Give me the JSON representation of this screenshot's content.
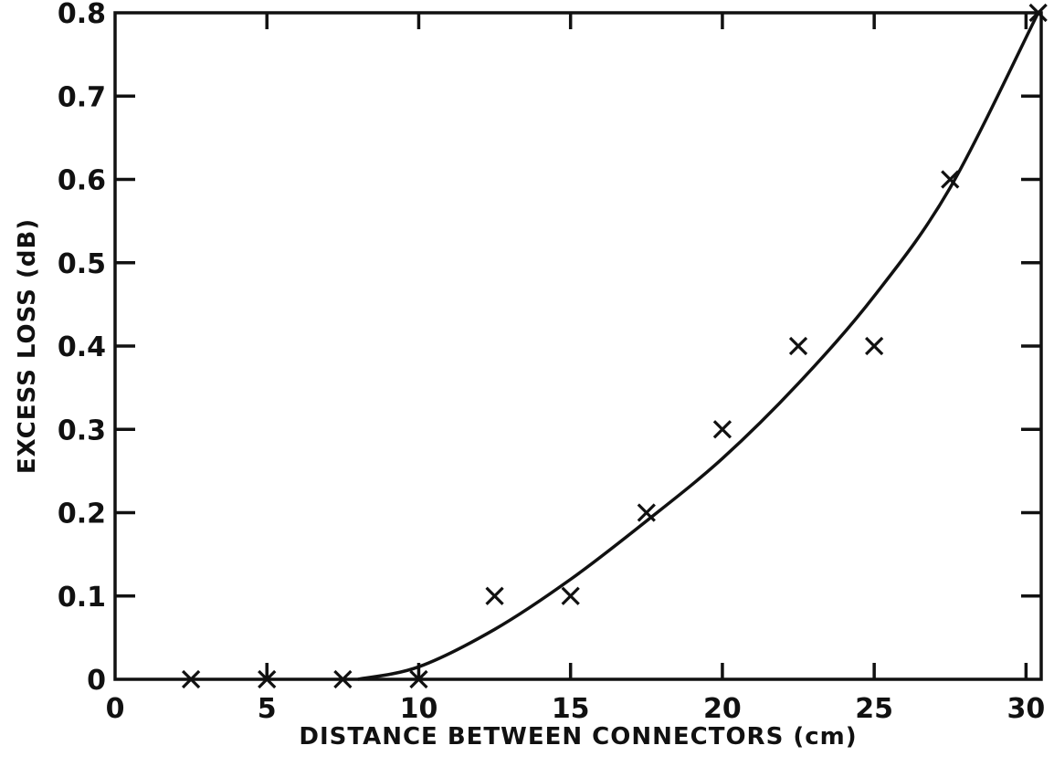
{
  "chart_data": {
    "type": "scatter",
    "title": "",
    "xlabel": "DISTANCE BETWEEN CONNECTORS (cm)",
    "ylabel": "EXCESS LOSS (dB)",
    "xlim": [
      0,
      30.5
    ],
    "ylim": [
      0,
      0.8
    ],
    "x_ticks": [
      0,
      5,
      10,
      15,
      20,
      25,
      30
    ],
    "x_tick_labels": [
      "0",
      "5",
      "10",
      "15",
      "20",
      "25",
      "30"
    ],
    "y_ticks": [
      0,
      0.1,
      0.2,
      0.3,
      0.4,
      0.5,
      0.6,
      0.7,
      0.8
    ],
    "y_tick_labels": [
      "0",
      "0.1",
      "0.2",
      "0.3",
      "0.4",
      "0.5",
      "0.6",
      "0.7",
      "0.8"
    ],
    "grid": false,
    "marker": "x",
    "series": [
      {
        "kind": "points",
        "x": [
          2.5,
          5,
          7.5,
          10,
          12.5,
          15,
          17.5,
          20,
          22.5,
          25,
          27.5,
          30.4
        ],
        "y": [
          0,
          0,
          0,
          0,
          0.1,
          0.1,
          0.2,
          0.3,
          0.4,
          0.4,
          0.6,
          0.8
        ]
      },
      {
        "kind": "fit-curve",
        "x": [
          8,
          10,
          12.5,
          15,
          17.5,
          20,
          22.5,
          25,
          27.5,
          30.4
        ],
        "y": [
          0,
          0.015,
          0.06,
          0.12,
          0.19,
          0.265,
          0.355,
          0.46,
          0.59,
          0.8
        ]
      }
    ]
  }
}
